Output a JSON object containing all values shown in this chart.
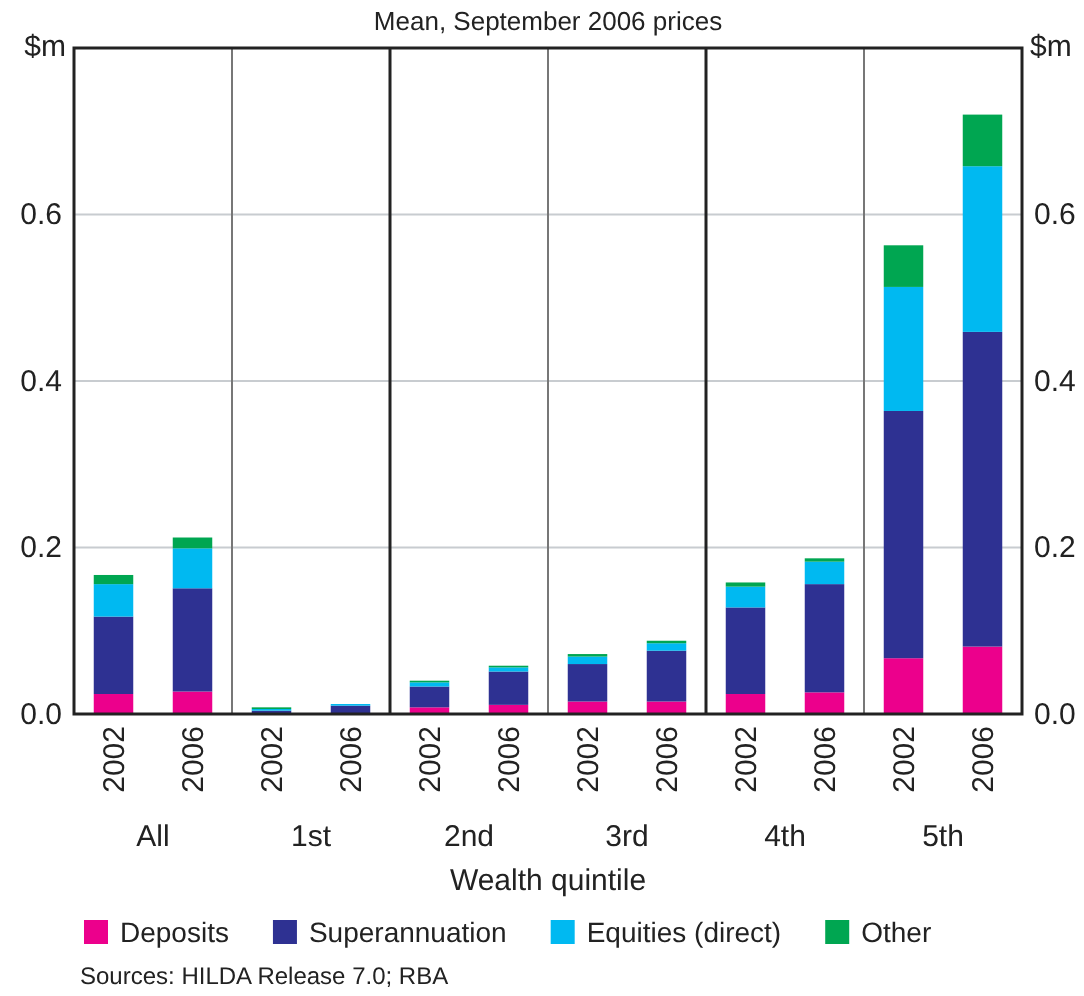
{
  "chart_data": {
    "type": "bar",
    "title": "Mean, September 2006 prices",
    "xlabel": "Wealth quintile",
    "ylabel": "$m",
    "y2label": "$m",
    "categories": [
      "2002",
      "2006",
      "2002",
      "2006",
      "2002",
      "2006",
      "2002",
      "2006",
      "2002",
      "2006",
      "2002",
      "2006"
    ],
    "annotations": [
      "All",
      "1st",
      "2nd",
      "3rd",
      "4th",
      "5th",
      "Sources: HILDA Release 7.0; RBA"
    ],
    "stacked": true,
    "series": [
      {
        "name": "Deposits",
        "color": "#ec008c",
        "values": [
          0.024,
          0.027,
          null,
          null,
          0.008,
          0.011,
          0.015,
          0.015,
          0.024,
          0.026,
          0.067,
          0.081
        ]
      },
      {
        "name": "Superannuation",
        "color": "#2e3192",
        "values": [
          0.093,
          0.124,
          0.004,
          0.01,
          0.025,
          0.04,
          0.045,
          0.061,
          0.104,
          0.13,
          0.297,
          0.378
        ]
      },
      {
        "name": "Equities (direct)",
        "color": "#00b9f1",
        "values": [
          0.039,
          0.048,
          0.002,
          0.002,
          0.005,
          0.005,
          0.009,
          0.009,
          0.025,
          0.027,
          0.149,
          0.199
        ]
      },
      {
        "name": "Other",
        "color": "#00a651",
        "values": [
          0.011,
          0.013,
          0.002,
          0.0,
          0.002,
          0.002,
          0.003,
          0.003,
          0.005,
          0.004,
          0.05,
          0.062
        ]
      }
    ],
    "ylim": [
      0,
      0.8
    ],
    "yticks": [
      {
        "value": 0,
        "label": "0.0"
      },
      0.2,
      0.4,
      0.6
    ],
    "y2lim": [
      0,
      0.8
    ],
    "y2ticks": [
      {
        "value": 0,
        "label": "0.0"
      },
      0.2,
      0.4,
      0.6
    ],
    "grid": "y",
    "legend": "bottom"
  }
}
